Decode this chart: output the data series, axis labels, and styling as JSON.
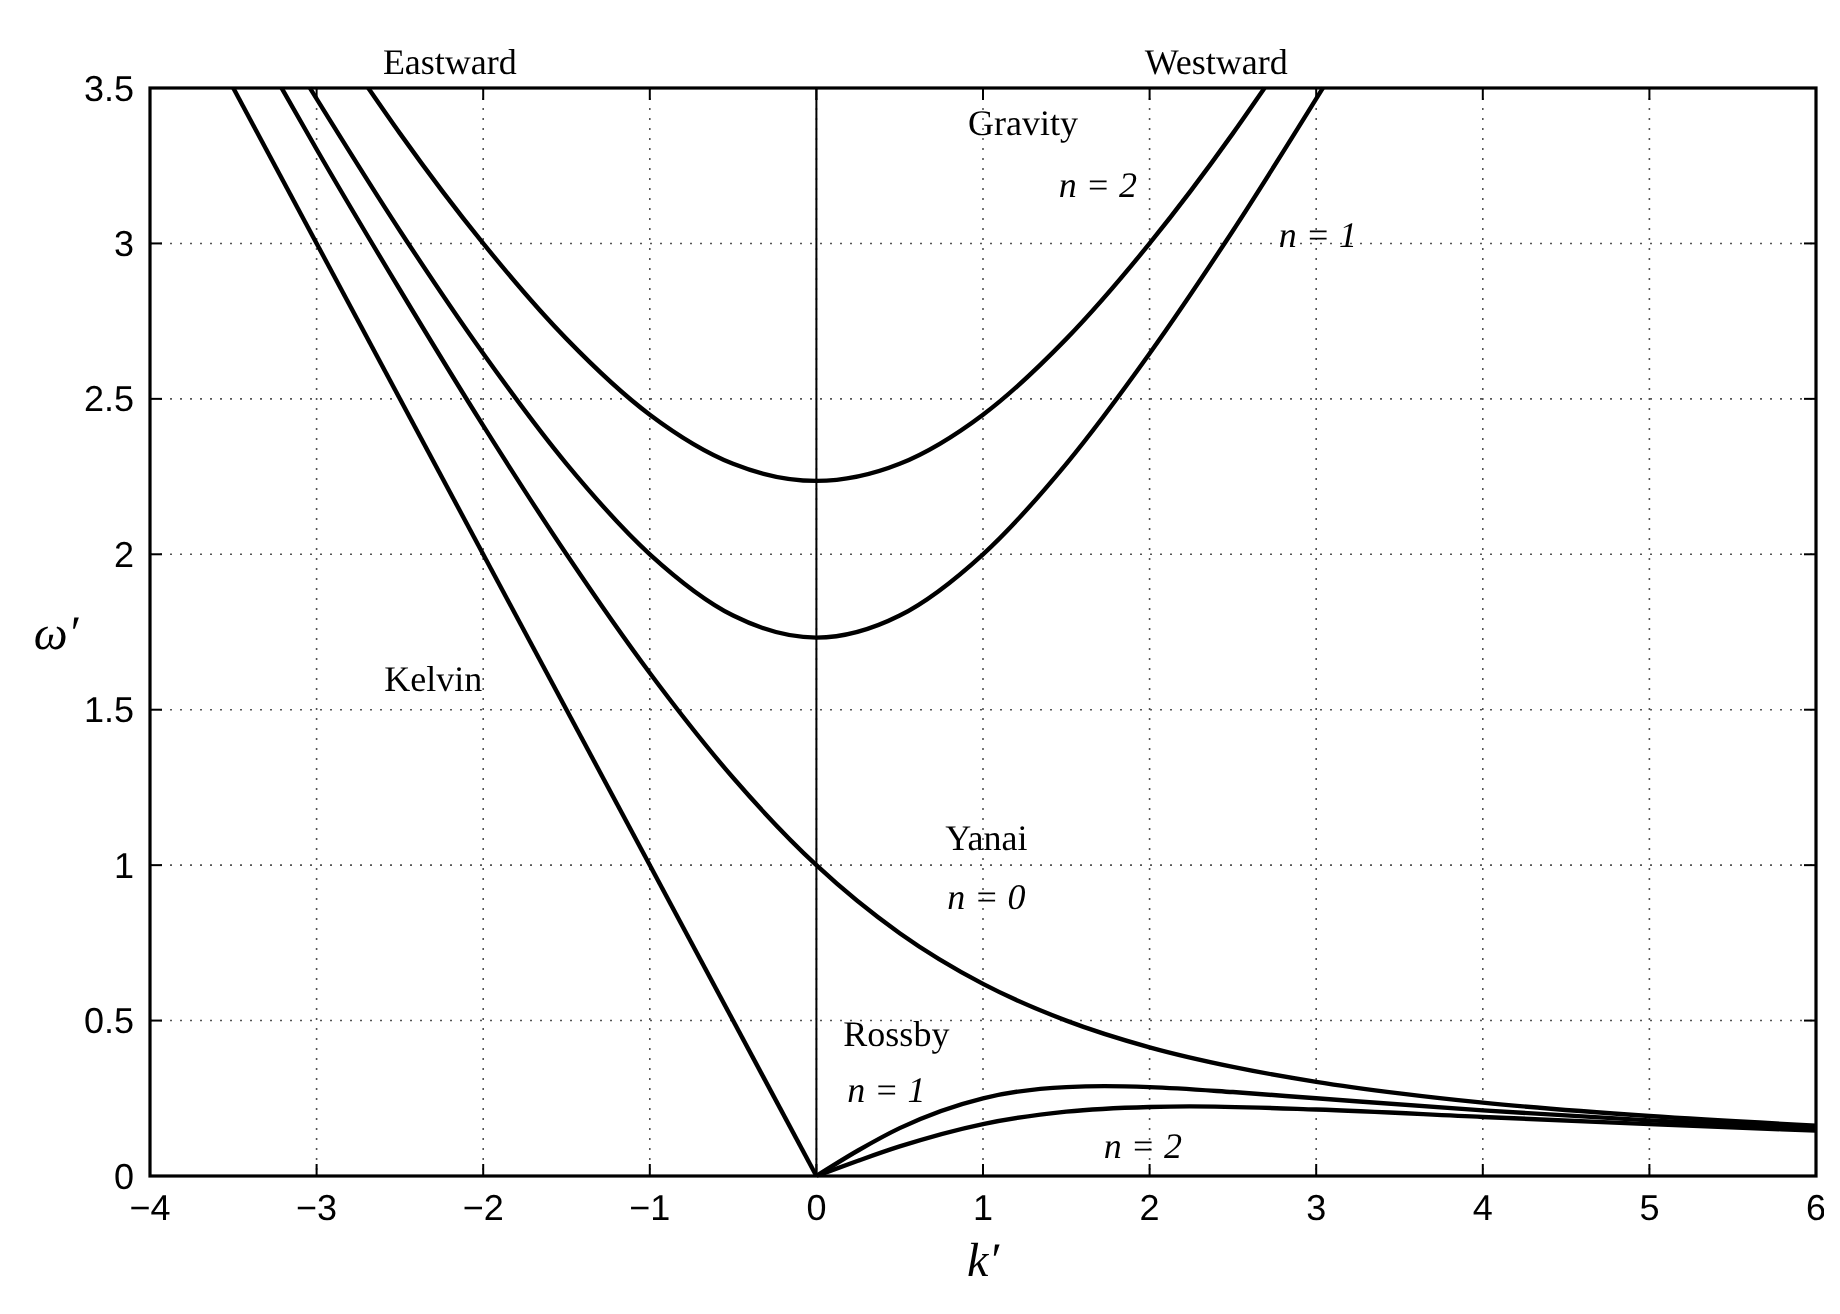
{
  "chart_data": {
    "type": "line",
    "xlabel": "k′",
    "ylabel": "ω′",
    "xlim": [
      -4,
      6
    ],
    "ylim": [
      0,
      3.5
    ],
    "xticks": [
      {
        "value": -4,
        "label": "−4"
      },
      {
        "value": -3,
        "label": "−3"
      },
      {
        "value": -2,
        "label": "−2"
      },
      {
        "value": -1,
        "label": "−1"
      },
      0,
      1,
      2,
      3,
      4,
      5,
      6
    ],
    "yticks": [
      0,
      0.5,
      1,
      1.5,
      2,
      2.5,
      3,
      3.5
    ],
    "grid": true,
    "line_style": "solid",
    "marker": "none",
    "series": [
      {
        "color": "#000000",
        "x": [
          -3.5,
          0
        ],
        "values": [
          3.5,
          0
        ]
      },
      {
        "color": "#000000",
        "x": [
          -3.21,
          -3,
          -2.5,
          -2,
          -1.5,
          -1,
          -0.5,
          0,
          0.5,
          1,
          1.5,
          2,
          2.5,
          3,
          3.5,
          4,
          5,
          6
        ],
        "values": [
          3.5,
          3.303,
          2.851,
          2.414,
          2.0,
          1.618,
          1.281,
          1,
          0.781,
          0.618,
          0.5,
          0.414,
          0.351,
          0.303,
          0.266,
          0.236,
          0.193,
          0.162
        ]
      },
      {
        "color": "#000000",
        "x": [
          -3.04,
          -2.5,
          -2,
          -1.5,
          -1,
          -0.5,
          0,
          0.5,
          1,
          1.5,
          2,
          2.5,
          3.04
        ],
        "values": [
          3.5,
          3.041,
          2.646,
          2.291,
          2,
          1.803,
          1.732,
          1.803,
          2,
          2.291,
          2.646,
          3.041,
          3.5
        ]
      },
      {
        "color": "#000000",
        "x": [
          -2.69,
          -2.5,
          -2,
          -1.5,
          -1,
          -0.5,
          0,
          0.5,
          1,
          1.5,
          2,
          2.5,
          2.69
        ],
        "values": [
          3.5,
          3.354,
          3,
          2.693,
          2.449,
          2.291,
          2.236,
          2.291,
          2.449,
          2.693,
          3,
          3.354,
          3.5
        ]
      },
      {
        "color": "#000000",
        "x": [
          0,
          0.25,
          0.5,
          1,
          1.5,
          1.73,
          2,
          2.5,
          3,
          4,
          5,
          6
        ],
        "values": [
          0,
          0.082,
          0.154,
          0.25,
          0.286,
          0.289,
          0.286,
          0.27,
          0.25,
          0.211,
          0.179,
          0.154
        ]
      },
      {
        "color": "#000000",
        "x": [
          0.03,
          0.25,
          0.5,
          1,
          1.5,
          2,
          2.24,
          3,
          4,
          5,
          6
        ],
        "values": [
          0.006,
          0.049,
          0.095,
          0.167,
          0.207,
          0.222,
          0.224,
          0.214,
          0.19,
          0.167,
          0.146
        ]
      }
    ],
    "ref_lines": [
      {
        "axis": "x",
        "value": 0,
        "color": "#000000"
      }
    ],
    "annotations": [
      "Eastward",
      "Westward",
      "Gravity",
      "n = 2",
      "n = 1",
      "Kelvin",
      "Yanai",
      "n = 0",
      "Rossby",
      "n = 1",
      "n = 2"
    ]
  }
}
